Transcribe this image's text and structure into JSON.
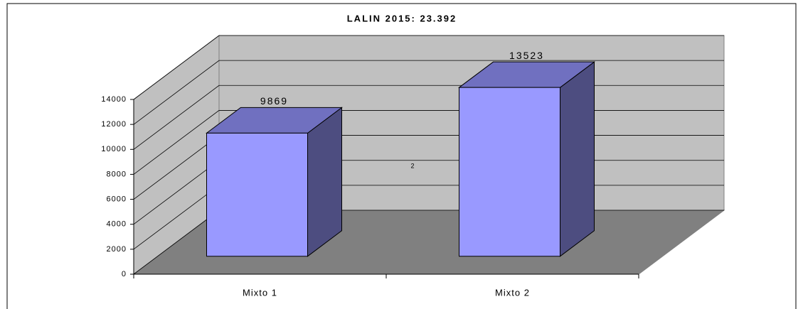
{
  "chart_data": {
    "type": "bar3d",
    "title": "LALIN 2015: 23.392",
    "categories": [
      "Mixto 1",
      "Mixto 2"
    ],
    "values": [
      9869,
      13523
    ],
    "color": "#9999ff",
    "annotation": "2",
    "ylim": [
      0,
      14000
    ],
    "yticks": [
      0,
      2000,
      4000,
      6000,
      8000,
      10000,
      12000,
      14000
    ],
    "grid": true
  }
}
